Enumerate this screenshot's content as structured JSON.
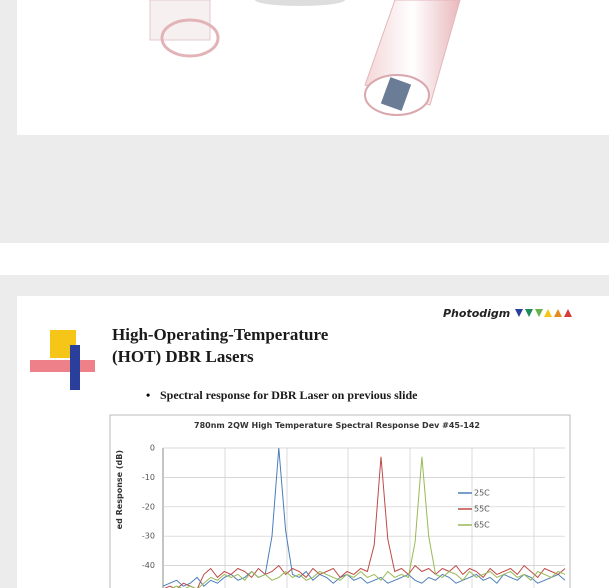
{
  "slide_2": {
    "logo": "Photodigm",
    "title_lines": [
      "High-Operating-Temperature",
      "(HOT) DBR Lasers"
    ],
    "bullet": "Spectral response for DBR Laser on previous slide"
  },
  "chart_data": {
    "type": "line",
    "title": "780nm 2QW High Temperature Spectral Response Dev #45-142",
    "y_label": "ed Response (dB)",
    "ylim": [
      -50,
      0
    ],
    "yticks": [
      0,
      -10,
      -20,
      -30,
      -40
    ],
    "grid": true,
    "series": [
      {
        "name": "25C",
        "color": "#4a7ebb",
        "values": [
          -47,
          -46,
          -45,
          -47,
          -46,
          -44,
          -47,
          -45,
          -46,
          -44,
          -43,
          -45,
          -44,
          -42,
          -44,
          -43,
          -30,
          0,
          -28,
          -43,
          -44,
          -42,
          -45,
          -43,
          -44,
          -46,
          -44,
          -43,
          -45,
          -44,
          -46,
          -45,
          -44,
          -46,
          -45,
          -44,
          -43,
          -45,
          -46,
          -44,
          -45,
          -43,
          -44,
          -46,
          -45,
          -44,
          -43,
          -45,
          -44,
          -46,
          -43,
          -44,
          -45,
          -43,
          -44,
          -46,
          -45,
          -44,
          -43,
          -45
        ]
      },
      {
        "name": "55C",
        "color": "#be4b48",
        "values": [
          -48,
          -47,
          -48,
          -46,
          -47,
          -48,
          -43,
          -41,
          -44,
          -42,
          -43,
          -41,
          -42,
          -44,
          -41,
          -43,
          -42,
          -40,
          -43,
          -41,
          -42,
          -44,
          -41,
          -43,
          -42,
          -41,
          -44,
          -42,
          -43,
          -41,
          -42,
          -33,
          -3,
          -31,
          -42,
          -41,
          -43,
          -40,
          -42,
          -41,
          -43,
          -41,
          -42,
          -40,
          -43,
          -41,
          -42,
          -44,
          -41,
          -43,
          -42,
          -41,
          -43,
          -40,
          -42,
          -44,
          -41,
          -42,
          -43,
          -41
        ]
      },
      {
        "name": "65C",
        "color": "#98b954",
        "values": [
          -48,
          -48,
          -47,
          -48,
          -47,
          -48,
          -46,
          -44,
          -45,
          -43,
          -44,
          -43,
          -45,
          -42,
          -44,
          -43,
          -45,
          -44,
          -42,
          -44,
          -43,
          -45,
          -44,
          -42,
          -43,
          -44,
          -45,
          -43,
          -44,
          -42,
          -44,
          -43,
          -45,
          -42,
          -44,
          -43,
          -44,
          -32,
          -3,
          -30,
          -43,
          -44,
          -42,
          -43,
          -45,
          -42,
          -44,
          -43,
          -42,
          -44,
          -43,
          -42,
          -44,
          -43,
          -45,
          -42,
          -43,
          -44,
          -42,
          -43
        ]
      }
    ]
  }
}
